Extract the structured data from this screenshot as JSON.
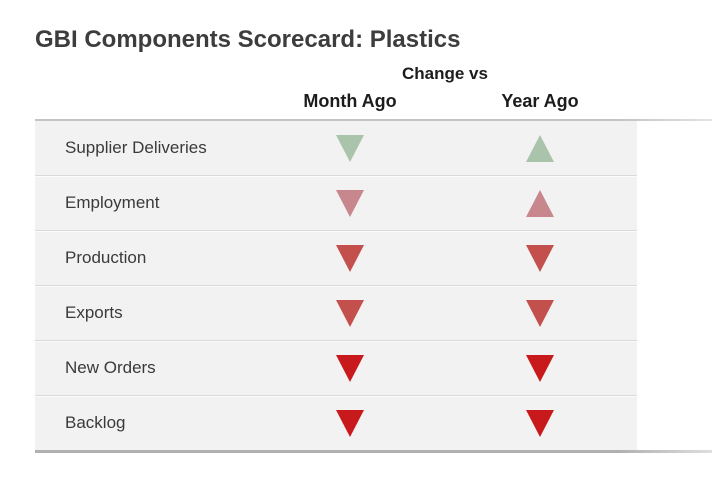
{
  "page": {
    "title": "GBI Components Scorecard: Plastics"
  },
  "table": {
    "group_header": "Change vs",
    "columns": [
      {
        "key": "month_ago",
        "label": "Month Ago"
      },
      {
        "key": "year_ago",
        "label": "Year Ago"
      }
    ],
    "rows": [
      {
        "label": "Supplier Deliveries",
        "month_ago": {
          "direction": "down",
          "color": "#a9c4aa"
        },
        "year_ago": {
          "direction": "up",
          "color": "#a9c4aa"
        }
      },
      {
        "label": "Employment",
        "month_ago": {
          "direction": "down",
          "color": "#c7878d"
        },
        "year_ago": {
          "direction": "up",
          "color": "#c7878d"
        }
      },
      {
        "label": "Production",
        "month_ago": {
          "direction": "down",
          "color": "#c4504e"
        },
        "year_ago": {
          "direction": "down",
          "color": "#c4504e"
        }
      },
      {
        "label": "Exports",
        "month_ago": {
          "direction": "down",
          "color": "#c4504e"
        },
        "year_ago": {
          "direction": "down",
          "color": "#c4504e"
        }
      },
      {
        "label": "New Orders",
        "month_ago": {
          "direction": "down",
          "color": "#c8191d"
        },
        "year_ago": {
          "direction": "down",
          "color": "#c8191d"
        }
      },
      {
        "label": "Backlog",
        "month_ago": {
          "direction": "down",
          "color": "#c8191d"
        },
        "year_ago": {
          "direction": "down",
          "color": "#c8191d"
        }
      }
    ]
  },
  "colors": {
    "positive_green": "#a9c4aa",
    "mild_negative_rose": "#c7878d",
    "negative_red": "#c4504e",
    "strong_negative_red": "#c8191d",
    "row_background": "#f3f2f2",
    "title_text": "#3d3d3d",
    "header_text": "#1c1c1c"
  },
  "chart_data": {
    "type": "table",
    "title": "GBI Components Scorecard: Plastics",
    "group_header": "Change vs",
    "columns": [
      "Month Ago",
      "Year Ago"
    ],
    "categories": [
      "Supplier Deliveries",
      "Employment",
      "Production",
      "Exports",
      "New Orders",
      "Backlog"
    ],
    "series": [
      {
        "name": "Month Ago",
        "values": [
          "down-green",
          "down-rose",
          "down-red",
          "down-red",
          "down-strong-red",
          "down-strong-red"
        ]
      },
      {
        "name": "Year Ago",
        "values": [
          "up-green",
          "up-rose",
          "down-red",
          "down-red",
          "down-strong-red",
          "down-strong-red"
        ]
      }
    ],
    "legend_position": "none",
    "grid": "row-separators"
  }
}
